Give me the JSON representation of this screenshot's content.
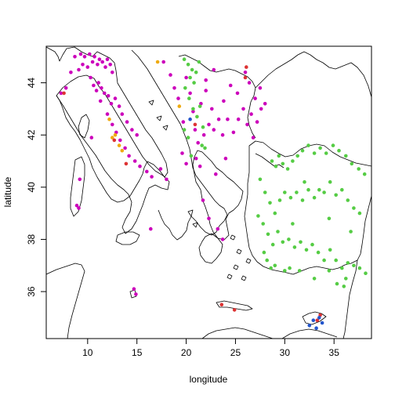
{
  "chart_data": {
    "type": "scatter",
    "title": "",
    "xlabel": "longitude",
    "ylabel": "latitude",
    "xlim": [
      5.8,
      38.8
    ],
    "ylim": [
      34.2,
      45.4
    ],
    "xticks": [
      10,
      15,
      20,
      25,
      30,
      35
    ],
    "yticks": [
      36,
      38,
      40,
      42,
      44
    ],
    "grid": false,
    "colors": {
      "magenta": "#CC00BB",
      "green": "#55CC44",
      "orange": "#EEAA11",
      "red": "#DD3333",
      "blue": "#2255CC"
    },
    "series": [
      {
        "color": "magenta",
        "points": [
          [
            7.3,
            43.6
          ],
          [
            7.8,
            43.8
          ],
          [
            8.3,
            44.4
          ],
          [
            8.7,
            45.0
          ],
          [
            9.1,
            44.5
          ],
          [
            9.3,
            45.1
          ],
          [
            9.5,
            44.7
          ],
          [
            9.7,
            45.0
          ],
          [
            10.0,
            44.6
          ],
          [
            10.2,
            45.1
          ],
          [
            10.5,
            44.8
          ],
          [
            10.7,
            45.0
          ],
          [
            11.0,
            44.7
          ],
          [
            11.2,
            44.9
          ],
          [
            11.5,
            44.8
          ],
          [
            11.8,
            44.6
          ],
          [
            12.0,
            44.9
          ],
          [
            12.3,
            44.7
          ],
          [
            12.5,
            44.4
          ],
          [
            10.3,
            44.2
          ],
          [
            10.6,
            43.9
          ],
          [
            10.9,
            43.7
          ],
          [
            11.1,
            44.0
          ],
          [
            11.4,
            43.8
          ],
          [
            11.7,
            43.6
          ],
          [
            12.1,
            43.5
          ],
          [
            12.4,
            43.2
          ],
          [
            12.8,
            43.4
          ],
          [
            13.2,
            43.1
          ],
          [
            13.5,
            42.8
          ],
          [
            14.0,
            42.5
          ],
          [
            14.5,
            42.2
          ],
          [
            15.0,
            42.0
          ],
          [
            11.3,
            43.3
          ],
          [
            12.0,
            42.8
          ],
          [
            12.5,
            42.4
          ],
          [
            12.9,
            42.1
          ],
          [
            13.3,
            41.8
          ],
          [
            13.8,
            41.5
          ],
          [
            14.2,
            41.2
          ],
          [
            14.8,
            41.0
          ],
          [
            15.3,
            40.8
          ],
          [
            16.0,
            40.6
          ],
          [
            16.5,
            40.4
          ],
          [
            17.4,
            40.7
          ],
          [
            18.0,
            40.3
          ],
          [
            9.2,
            40.3
          ],
          [
            8.9,
            39.3
          ],
          [
            9.1,
            39.2
          ],
          [
            10.4,
            41.9
          ],
          [
            14.7,
            36.1
          ],
          [
            14.9,
            35.9
          ],
          [
            16.4,
            38.4
          ],
          [
            17.7,
            44.8
          ],
          [
            18.4,
            44.3
          ],
          [
            18.8,
            43.8
          ],
          [
            19.2,
            43.4
          ],
          [
            20.0,
            44.2
          ],
          [
            20.4,
            43.6
          ],
          [
            20.7,
            42.9
          ],
          [
            20.9,
            42.2
          ],
          [
            21.2,
            41.7
          ],
          [
            21.0,
            41.1
          ],
          [
            21.4,
            40.8
          ],
          [
            21.8,
            42.0
          ],
          [
            22.3,
            42.4
          ],
          [
            22.8,
            42.2
          ],
          [
            23.3,
            42.6
          ],
          [
            23.7,
            42.0
          ],
          [
            24.2,
            42.6
          ],
          [
            24.8,
            42.1
          ],
          [
            25.3,
            42.6
          ],
          [
            25.8,
            43.0
          ],
          [
            26.2,
            42.4
          ],
          [
            26.6,
            42.8
          ],
          [
            27.2,
            42.5
          ],
          [
            27.6,
            43.0
          ],
          [
            23.8,
            43.3
          ],
          [
            24.5,
            43.9
          ],
          [
            25.2,
            43.6
          ],
          [
            26.0,
            44.4
          ],
          [
            26.4,
            44.0
          ],
          [
            27.0,
            43.4
          ],
          [
            27.5,
            43.8
          ],
          [
            28.0,
            43.2
          ],
          [
            26.8,
            41.9
          ],
          [
            22.0,
            43.7
          ],
          [
            21.5,
            43.2
          ],
          [
            22.6,
            43.0
          ],
          [
            19.7,
            42.5
          ],
          [
            19.6,
            41.3
          ],
          [
            20.0,
            40.9
          ],
          [
            21.7,
            39.5
          ],
          [
            22.3,
            38.8
          ],
          [
            23.2,
            38.4
          ],
          [
            23.7,
            38.0
          ],
          [
            23.0,
            40.5
          ],
          [
            24.0,
            41.1
          ],
          [
            22.0,
            44.1
          ],
          [
            22.8,
            44.5
          ]
        ]
      },
      {
        "color": "green",
        "points": [
          [
            19.8,
            44.9
          ],
          [
            20.2,
            44.7
          ],
          [
            20.6,
            44.5
          ],
          [
            21.0,
            44.4
          ],
          [
            21.3,
            44.8
          ],
          [
            20.4,
            44.2
          ],
          [
            20.8,
            44.0
          ],
          [
            19.9,
            43.8
          ],
          [
            20.3,
            43.4
          ],
          [
            20.7,
            43.0
          ],
          [
            21.1,
            42.7
          ],
          [
            21.4,
            43.1
          ],
          [
            21.7,
            42.3
          ],
          [
            19.8,
            42.2
          ],
          [
            20.2,
            41.9
          ],
          [
            21.9,
            41.5
          ],
          [
            20.5,
            41.2
          ],
          [
            21.6,
            41.6
          ],
          [
            28.7,
            41.0
          ],
          [
            29.1,
            40.8
          ],
          [
            29.4,
            41.2
          ],
          [
            29.8,
            40.9
          ],
          [
            30.3,
            40.7
          ],
          [
            30.8,
            41.0
          ],
          [
            31.3,
            41.2
          ],
          [
            31.8,
            41.4
          ],
          [
            32.4,
            41.6
          ],
          [
            33.0,
            41.3
          ],
          [
            33.6,
            41.5
          ],
          [
            34.2,
            41.3
          ],
          [
            34.9,
            41.6
          ],
          [
            35.5,
            41.4
          ],
          [
            36.2,
            41.2
          ],
          [
            36.8,
            40.9
          ],
          [
            37.5,
            40.7
          ],
          [
            38.1,
            40.5
          ],
          [
            27.5,
            40.3
          ],
          [
            28.0,
            39.8
          ],
          [
            28.5,
            39.4
          ],
          [
            29.0,
            39.0
          ],
          [
            29.5,
            39.5
          ],
          [
            30.0,
            39.8
          ],
          [
            30.6,
            39.6
          ],
          [
            31.2,
            39.8
          ],
          [
            31.8,
            39.5
          ],
          [
            32.4,
            39.9
          ],
          [
            33.0,
            39.6
          ],
          [
            33.5,
            39.9
          ],
          [
            34.0,
            39.8
          ],
          [
            34.6,
            40.2
          ],
          [
            35.2,
            39.7
          ],
          [
            35.8,
            39.9
          ],
          [
            36.4,
            39.5
          ],
          [
            37.0,
            39.2
          ],
          [
            37.6,
            39.0
          ],
          [
            27.8,
            38.6
          ],
          [
            28.3,
            38.2
          ],
          [
            28.8,
            37.8
          ],
          [
            29.3,
            38.3
          ],
          [
            29.8,
            37.9
          ],
          [
            30.4,
            38.0
          ],
          [
            31.0,
            37.7
          ],
          [
            31.6,
            37.9
          ],
          [
            32.2,
            37.6
          ],
          [
            32.8,
            37.8
          ],
          [
            33.4,
            37.5
          ],
          [
            34.0,
            37.2
          ],
          [
            34.6,
            37.6
          ],
          [
            35.2,
            37.2
          ],
          [
            35.8,
            36.9
          ],
          [
            36.4,
            37.1
          ],
          [
            37.0,
            37.0
          ],
          [
            37.6,
            36.9
          ],
          [
            38.2,
            36.7
          ],
          [
            28.2,
            37.2
          ],
          [
            29.0,
            37.0
          ],
          [
            30.0,
            36.8
          ],
          [
            30.5,
            36.9
          ],
          [
            31.5,
            36.8
          ],
          [
            33.0,
            36.5
          ],
          [
            34.5,
            36.8
          ],
          [
            35.3,
            36.3
          ],
          [
            36.2,
            36.5
          ],
          [
            36.0,
            36.2
          ],
          [
            27.9,
            37.5
          ],
          [
            28.6,
            36.9
          ],
          [
            27.3,
            38.9
          ],
          [
            32.0,
            40.2
          ],
          [
            34.5,
            38.8
          ],
          [
            36.7,
            38.3
          ],
          [
            30.8,
            38.6
          ]
        ]
      },
      {
        "color": "orange",
        "points": [
          [
            17.1,
            44.8
          ],
          [
            12.5,
            41.9
          ],
          [
            12.8,
            42.0
          ],
          [
            13.2,
            41.6
          ],
          [
            13.5,
            41.4
          ],
          [
            12.2,
            42.6
          ],
          [
            19.3,
            43.1
          ]
        ]
      },
      {
        "color": "red",
        "points": [
          [
            7.6,
            43.6
          ],
          [
            12.7,
            41.8
          ],
          [
            13.9,
            40.9
          ],
          [
            20.9,
            42.4
          ],
          [
            23.6,
            35.5
          ],
          [
            24.9,
            35.3
          ],
          [
            26.1,
            44.6
          ],
          [
            26.0,
            44.2
          ],
          [
            33.3,
            34.9
          ],
          [
            33.6,
            35.1
          ]
        ]
      },
      {
        "color": "blue",
        "points": [
          [
            20.4,
            42.6
          ],
          [
            32.5,
            34.7
          ],
          [
            32.9,
            34.9
          ],
          [
            33.2,
            34.6
          ],
          [
            33.5,
            35.0
          ],
          [
            33.8,
            34.8
          ]
        ]
      }
    ]
  }
}
